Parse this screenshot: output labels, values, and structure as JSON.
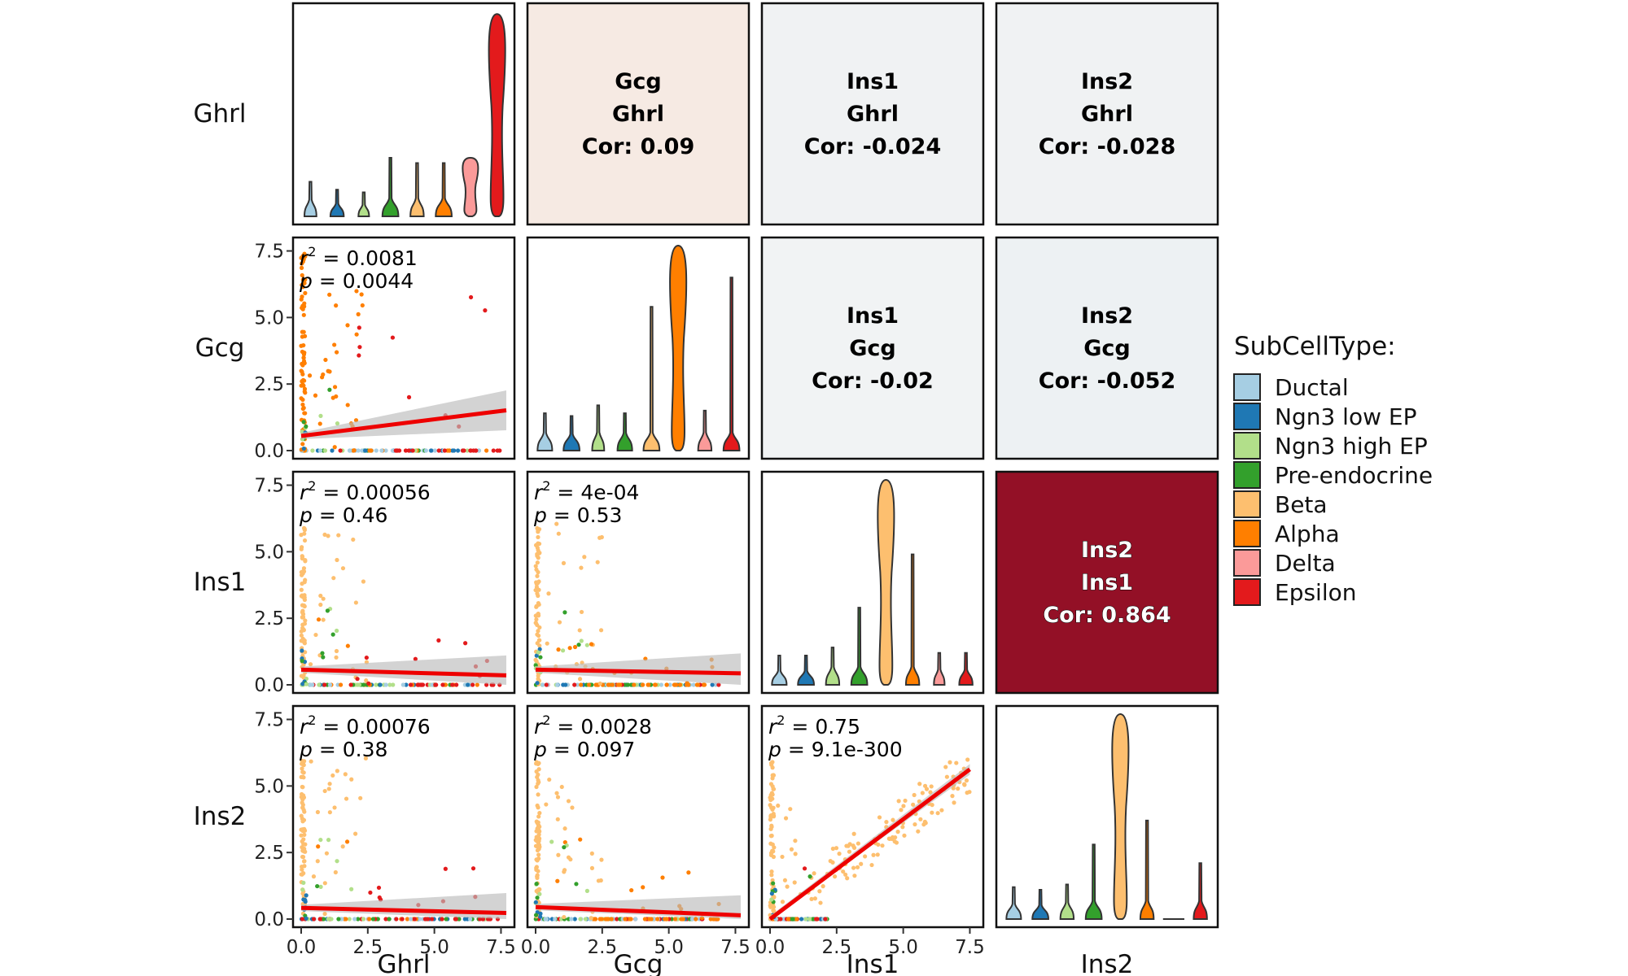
{
  "chart_data": {
    "type": "pairs-matrix",
    "variables": [
      "Ghrl",
      "Gcg",
      "Ins1",
      "Ins2"
    ],
    "axis": {
      "range": [
        0,
        7.7
      ],
      "ticks": [
        0,
        2.5,
        5,
        7.5
      ],
      "tick_labels": [
        "0.0",
        "2.5",
        "5.0",
        "7.5"
      ]
    },
    "legend": {
      "title": "SubCellType:",
      "placement": "right",
      "items": [
        {
          "label": "Ductal",
          "color": "#a6cee3"
        },
        {
          "label": "Ngn3 low EP",
          "color": "#1f78b4"
        },
        {
          "label": "Ngn3 high EP",
          "color": "#b2df8a"
        },
        {
          "label": "Pre-endocrine",
          "color": "#33a02c"
        },
        {
          "label": "Beta",
          "color": "#fdbf6f"
        },
        {
          "label": "Alpha",
          "color": "#ff7f00"
        },
        {
          "label": "Delta",
          "color": "#fb9a99"
        },
        {
          "label": "Epsilon",
          "color": "#e31a1c"
        }
      ]
    },
    "correlations": [
      {
        "row": 0,
        "col": 1,
        "x": "Gcg",
        "y": "Ghrl",
        "label": "Cor: 0.09",
        "value": 0.09,
        "fill": "#f6eae3",
        "text_color": "#000000"
      },
      {
        "row": 0,
        "col": 2,
        "x": "Ins1",
        "y": "Ghrl",
        "label": "Cor: -0.024",
        "value": -0.024,
        "fill": "#f0f2f3",
        "text_color": "#000000"
      },
      {
        "row": 0,
        "col": 3,
        "x": "Ins2",
        "y": "Ghrl",
        "label": "Cor: -0.028",
        "value": -0.028,
        "fill": "#f0f2f3",
        "text_color": "#000000"
      },
      {
        "row": 1,
        "col": 2,
        "x": "Ins1",
        "y": "Gcg",
        "label": "Cor: -0.02",
        "value": -0.02,
        "fill": "#f1f3f4",
        "text_color": "#000000"
      },
      {
        "row": 1,
        "col": 3,
        "x": "Ins2",
        "y": "Gcg",
        "label": "Cor: -0.052",
        "value": -0.052,
        "fill": "#edf1f3",
        "text_color": "#000000"
      },
      {
        "row": 2,
        "col": 3,
        "x": "Ins2",
        "y": "Ins1",
        "label": "Cor: 0.864",
        "value": 0.864,
        "fill": "#931026",
        "text_color": "#ffffff"
      }
    ],
    "regressions": [
      {
        "row": 1,
        "col": 0,
        "r2": "0.0081",
        "p": "0.0044",
        "intercept": 0.55,
        "slope": 0.125
      },
      {
        "row": 2,
        "col": 0,
        "r2": "0.00056",
        "p": "0.46",
        "intercept": 0.57,
        "slope": -0.028
      },
      {
        "row": 2,
        "col": 1,
        "r2": "4e-04",
        "p": "0.53",
        "intercept": 0.57,
        "slope": -0.018
      },
      {
        "row": 3,
        "col": 0,
        "r2": "0.00076",
        "p": "0.38",
        "intercept": 0.42,
        "slope": -0.025
      },
      {
        "row": 3,
        "col": 1,
        "r2": "0.0028",
        "p": "0.097",
        "intercept": 0.45,
        "slope": -0.04
      },
      {
        "row": 3,
        "col": 2,
        "r2": "0.75",
        "p": "9.1e-300",
        "intercept": 0.0,
        "slope": 0.75
      }
    ],
    "violins": [
      {
        "variable": "Ghrl",
        "max": [
          1.3,
          1.0,
          0.9,
          2.2,
          2.0,
          2.0,
          2.2,
          7.6
        ],
        "width": [
          0.45,
          0.5,
          0.4,
          0.6,
          0.5,
          0.6,
          0.9,
          0.95
        ]
      },
      {
        "variable": "Gcg",
        "max": [
          1.4,
          1.3,
          1.7,
          1.4,
          5.4,
          7.7,
          1.5,
          6.5
        ],
        "width": [
          0.55,
          0.6,
          0.45,
          0.55,
          0.6,
          0.95,
          0.5,
          0.6
        ]
      },
      {
        "variable": "Ins1",
        "max": [
          1.1,
          1.1,
          1.4,
          2.9,
          7.7,
          4.9,
          1.2,
          1.2
        ],
        "width": [
          0.55,
          0.6,
          0.5,
          0.6,
          0.95,
          0.5,
          0.4,
          0.5
        ]
      },
      {
        "variable": "Ins2",
        "max": [
          1.2,
          1.1,
          1.3,
          2.8,
          7.7,
          3.7,
          0.0,
          2.1
        ],
        "width": [
          0.55,
          0.6,
          0.5,
          0.6,
          0.95,
          0.5,
          0.0,
          0.5
        ]
      }
    ]
  }
}
